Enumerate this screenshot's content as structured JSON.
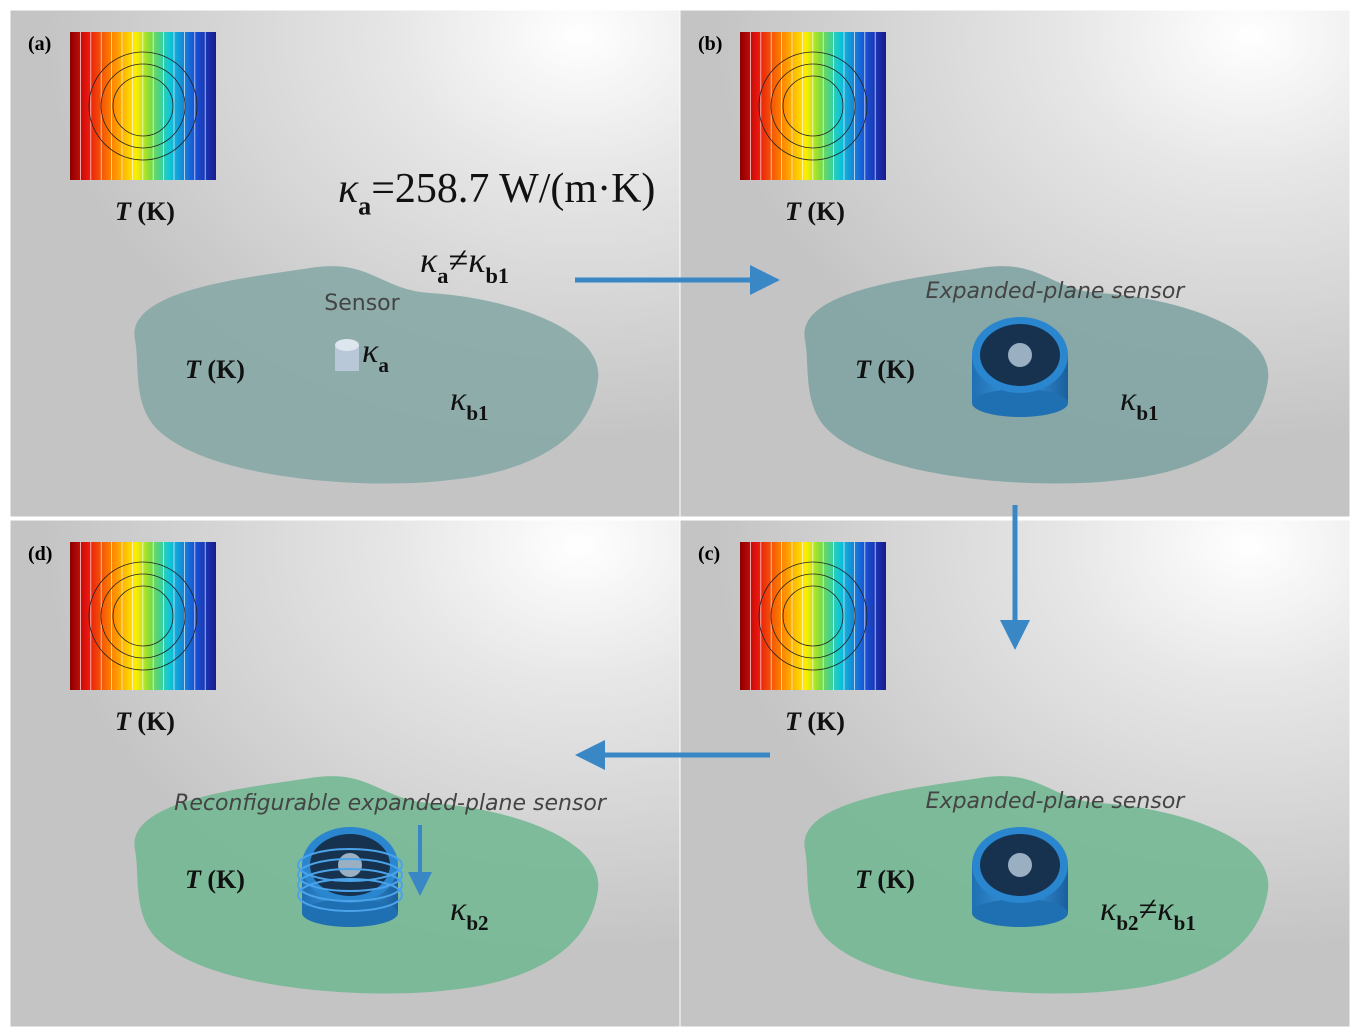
{
  "equation": [
    {
      "text": "κ",
      "style": "i"
    },
    {
      "text": "a",
      "style": "sub"
    },
    {
      "text": "=258.7 W/(m·K)",
      "style": "n"
    }
  ],
  "relation": [
    {
      "text": "κ",
      "style": "i"
    },
    {
      "text": "a",
      "style": "sub"
    },
    {
      "text": "≠",
      "style": "n"
    },
    {
      "text": "κ",
      "style": "i"
    },
    {
      "text": "b1",
      "style": "sub"
    }
  ],
  "panels": [
    {
      "label": "(a)",
      "plane_color": "#86a8a6",
      "map_label": [
        {
          "text": "T",
          "style": "bi"
        },
        {
          "text": " (K)",
          "style": "b"
        }
      ],
      "sensor_label": "Sensor",
      "plane_temp": [
        {
          "text": "T",
          "style": "bi"
        },
        {
          "text": " (K)",
          "style": "b"
        }
      ],
      "sensor_k": [
        {
          "text": "κ",
          "style": "i"
        },
        {
          "text": "a",
          "style": "sub"
        }
      ],
      "plane_k": [
        {
          "text": "κ",
          "style": "i"
        },
        {
          "text": "b1",
          "style": "sub"
        }
      ]
    },
    {
      "label": "(b)",
      "plane_color": "#80a4a2",
      "map_label": [
        {
          "text": "T",
          "style": "bi"
        },
        {
          "text": " (K)",
          "style": "b"
        }
      ],
      "sensor_label": "Expanded-plane sensor",
      "plane_temp": [
        {
          "text": "T",
          "style": "bi"
        },
        {
          "text": " (K)",
          "style": "b"
        }
      ],
      "plane_k": [
        {
          "text": "κ",
          "style": "i"
        },
        {
          "text": "b1",
          "style": "sub"
        }
      ]
    },
    {
      "label": "(c)",
      "plane_color": "#74b894",
      "map_label": [
        {
          "text": "T",
          "style": "bi"
        },
        {
          "text": " (K)",
          "style": "b"
        }
      ],
      "sensor_label": "Expanded-plane sensor",
      "plane_temp": [
        {
          "text": "T",
          "style": "bi"
        },
        {
          "text": " (K)",
          "style": "b"
        }
      ],
      "plane_k": [
        {
          "text": "κ",
          "style": "i"
        },
        {
          "text": "b2",
          "style": "sub"
        },
        {
          "text": "≠",
          "style": "n"
        },
        {
          "text": "κ",
          "style": "i"
        },
        {
          "text": "b1",
          "style": "sub"
        }
      ]
    },
    {
      "label": "(d)",
      "plane_color": "#74b894",
      "map_label": [
        {
          "text": "T",
          "style": "bi"
        },
        {
          "text": " (K)",
          "style": "b"
        }
      ],
      "sensor_label": "Reconfigurable expanded-plane sensor",
      "plane_temp": [
        {
          "text": "T",
          "style": "bi"
        },
        {
          "text": " (K)",
          "style": "b"
        }
      ],
      "plane_k": [
        {
          "text": "κ",
          "style": "i"
        },
        {
          "text": "b2",
          "style": "sub"
        }
      ]
    }
  ]
}
